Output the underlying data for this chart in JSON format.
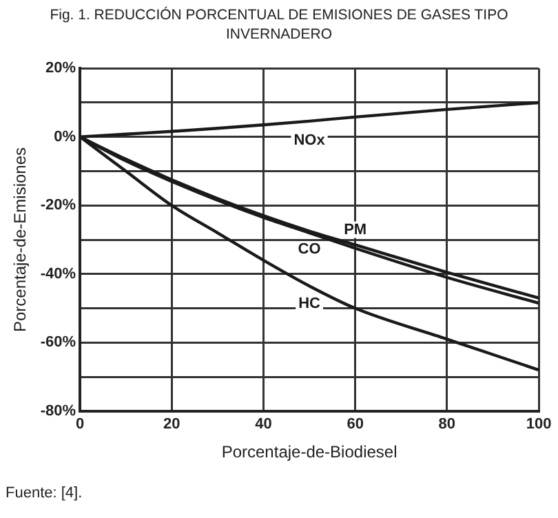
{
  "chart_data": {
    "type": "line",
    "title": "Fig. 1. REDUCCIÓN PORCENTUAL DE EMISIONES DE GASES TIPO INVERNADERO",
    "xlabel": "Porcentaje-de-Biodiesel",
    "ylabel": "Porcentaje-de-Emisiones",
    "x": [
      0,
      10,
      20,
      30,
      40,
      50,
      60,
      80,
      100
    ],
    "series": [
      {
        "name": "NOx",
        "color": "#1a1a1a",
        "values": [
          0,
          0.8,
          1.6,
          2.5,
          3.5,
          4.6,
          5.8,
          8,
          10
        ]
      },
      {
        "name": "PM",
        "color": "#1a1a1a",
        "values": [
          0,
          -6.5,
          -12.5,
          -18,
          -23,
          -27.5,
          -31.5,
          -39.5,
          -47
        ]
      },
      {
        "name": "CO",
        "color": "#1a1a1a",
        "values": [
          0,
          -7,
          -13,
          -18.5,
          -23.5,
          -28,
          -32.5,
          -41,
          -48.5
        ]
      },
      {
        "name": "HC",
        "color": "#1a1a1a",
        "values": [
          0,
          -10,
          -20,
          -28,
          -36,
          -43.5,
          -50,
          -59,
          -68
        ]
      }
    ],
    "xlim": [
      0,
      100
    ],
    "xticks": [
      0,
      20,
      40,
      60,
      80,
      100
    ],
    "ylim": [
      -80,
      20
    ],
    "yticks": [
      {
        "value": -80,
        "label": "-80%"
      },
      {
        "value": -70,
        "label": null
      },
      {
        "value": -60,
        "label": "-60%"
      },
      {
        "value": -50,
        "label": null
      },
      {
        "value": -40,
        "label": "-40%"
      },
      {
        "value": -30,
        "label": null
      },
      {
        "value": -20,
        "label": "-20%"
      },
      {
        "value": -10,
        "label": null
      },
      {
        "value": 0,
        "label": "0%"
      },
      {
        "value": 10,
        "label": null
      },
      {
        "value": 20,
        "label": "20%"
      }
    ],
    "grid": true,
    "legend": false,
    "marker": "none",
    "line_style": "solid",
    "annotations": [
      "Fuente: [4]."
    ]
  }
}
